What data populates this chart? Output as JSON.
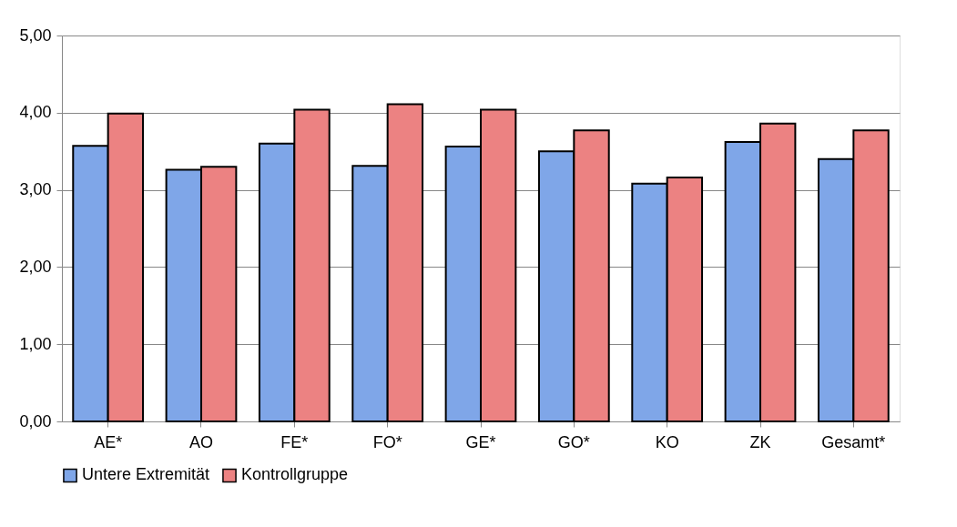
{
  "chart_data": {
    "type": "bar",
    "categories": [
      "AE*",
      "AO",
      "FE*",
      "FO*",
      "GE*",
      "GO*",
      "KO",
      "ZK",
      "Gesamt*"
    ],
    "series": [
      {
        "name": "Untere Extremität",
        "color": "#7fa6e8",
        "values": [
          3.57,
          3.26,
          3.6,
          3.31,
          3.56,
          3.5,
          3.08,
          3.62,
          3.4
        ]
      },
      {
        "name": "Kontrollgruppe",
        "color": "#ec8282",
        "values": [
          3.99,
          3.3,
          4.04,
          4.11,
          4.04,
          3.77,
          3.16,
          3.86,
          3.77
        ]
      }
    ],
    "ylim": [
      0,
      5
    ],
    "yticks": [
      {
        "value": 0,
        "label": "0,00"
      },
      {
        "value": 1,
        "label": "1,00"
      },
      {
        "value": 2,
        "label": "2,00"
      },
      {
        "value": 3,
        "label": "3,00"
      },
      {
        "value": 4,
        "label": "4,00"
      },
      {
        "value": 5,
        "label": "5,00"
      }
    ],
    "grid": "y",
    "legend": "bottom"
  }
}
